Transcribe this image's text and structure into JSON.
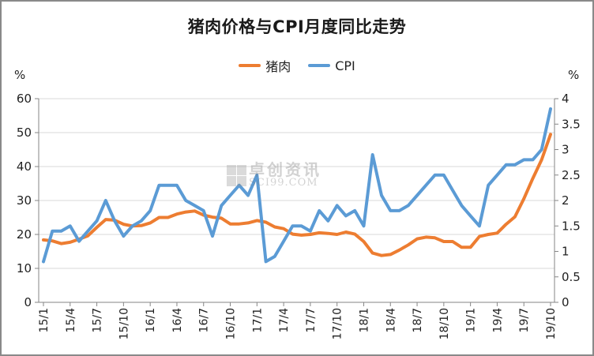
{
  "chart_data": {
    "type": "line",
    "title": "猪肉价格与CPI月度同比走势",
    "xlabel": "",
    "ylabel_left": "%",
    "ylabel_right": "%",
    "ylim_left": [
      0,
      60
    ],
    "ylim_right": [
      0,
      4
    ],
    "yticks_left": [
      "0",
      "10",
      "20",
      "30",
      "40",
      "50",
      "60"
    ],
    "yticks_right": [
      "0",
      "0.5",
      "1",
      "1.5",
      "2",
      "2.5",
      "3",
      "3.5",
      "4"
    ],
    "grid": true,
    "legend_position": "top",
    "x_tick_labels": [
      "15/1",
      "15/4",
      "15/7",
      "15/10",
      "16/1",
      "16/4",
      "16/7",
      "16/10",
      "17/1",
      "17/4",
      "17/7",
      "17/10",
      "18/1",
      "18/4",
      "18/7",
      "18/10",
      "19/1",
      "19/4",
      "19/7",
      "19/10"
    ],
    "x": [
      "15/1",
      "15/2",
      "15/3",
      "15/4",
      "15/5",
      "15/6",
      "15/7",
      "15/8",
      "15/9",
      "15/10",
      "15/11",
      "15/12",
      "16/1",
      "16/2",
      "16/3",
      "16/4",
      "16/5",
      "16/6",
      "16/7",
      "16/8",
      "16/9",
      "16/10",
      "16/11",
      "16/12",
      "17/1",
      "17/2",
      "17/3",
      "17/4",
      "17/5",
      "17/6",
      "17/7",
      "17/8",
      "17/9",
      "17/10",
      "17/11",
      "17/12",
      "18/1",
      "18/2",
      "18/3",
      "18/4",
      "18/5",
      "18/6",
      "18/7",
      "18/8",
      "18/9",
      "18/10",
      "18/11",
      "18/12",
      "19/1",
      "19/2",
      "19/3",
      "19/4",
      "19/5",
      "19/6",
      "19/7",
      "19/8",
      "19/9",
      "19/10"
    ],
    "series": [
      {
        "name": "猪肉",
        "axis": "left",
        "color": "#ED7D31",
        "values": [
          18.4,
          18.1,
          17.3,
          17.7,
          18.6,
          19.6,
          22.1,
          24.4,
          24.2,
          23.0,
          22.5,
          22.6,
          23.4,
          25.0,
          25.0,
          26.0,
          26.6,
          26.9,
          25.7,
          25.1,
          24.8,
          23.1,
          23.1,
          23.4,
          24.1,
          23.6,
          22.2,
          21.7,
          20.1,
          19.8,
          20.0,
          20.5,
          20.3,
          20.0,
          20.7,
          20.1,
          17.9,
          14.5,
          13.8,
          14.1,
          15.4,
          16.9,
          18.7,
          19.2,
          19.0,
          17.9,
          17.9,
          16.2,
          16.2,
          19.4,
          20.0,
          20.4,
          23.0,
          25.2,
          30.5,
          36.5,
          42.0,
          49.5
        ]
      },
      {
        "name": "CPI",
        "axis": "right",
        "color": "#5B9BD5",
        "values": [
          0.8,
          1.4,
          1.4,
          1.5,
          1.2,
          1.4,
          1.6,
          2.0,
          1.6,
          1.3,
          1.5,
          1.6,
          1.8,
          2.3,
          2.3,
          2.3,
          2.0,
          1.9,
          1.8,
          1.3,
          1.9,
          2.1,
          2.3,
          2.1,
          2.5,
          0.8,
          0.9,
          1.2,
          1.5,
          1.5,
          1.4,
          1.8,
          1.6,
          1.9,
          1.7,
          1.8,
          1.5,
          2.9,
          2.1,
          1.8,
          1.8,
          1.9,
          2.1,
          2.3,
          2.5,
          2.5,
          2.2,
          1.9,
          1.7,
          1.5,
          2.3,
          2.5,
          2.7,
          2.7,
          2.8,
          2.8,
          3.0,
          3.8
        ]
      }
    ]
  },
  "header": {
    "title": "猪肉价格与CPI月度同比走势"
  },
  "legend": {
    "items": [
      {
        "label": "猪肉",
        "color": "#ED7D31"
      },
      {
        "label": "CPI",
        "color": "#5B9BD5"
      }
    ]
  },
  "axes": {
    "left_unit": "%",
    "right_unit": "%"
  },
  "watermark": {
    "cn": "卓创资讯",
    "en": "SCI99.COM"
  }
}
